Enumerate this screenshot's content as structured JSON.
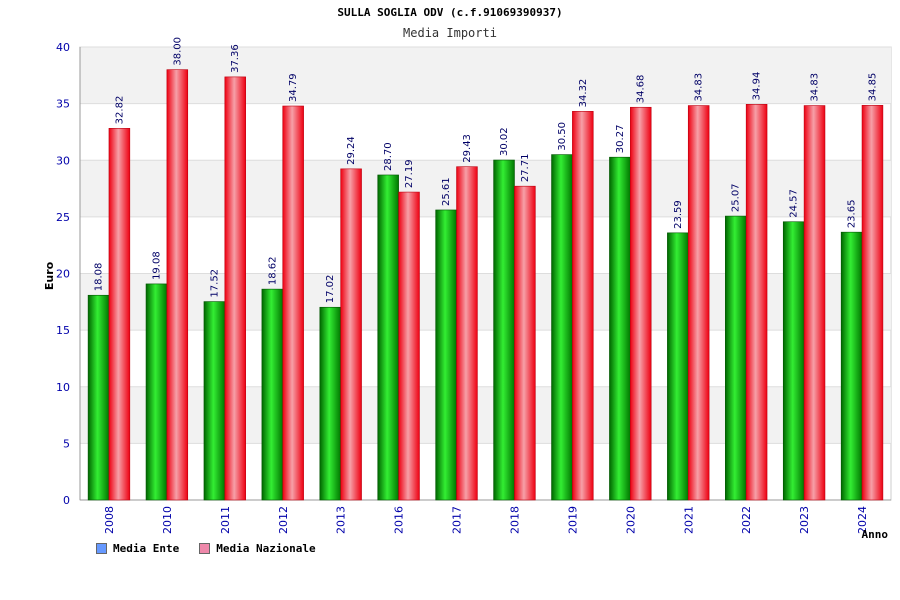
{
  "chart_data": {
    "type": "bar",
    "title": "SULLA SOGLIA ODV (c.f.91069390937)",
    "subtitle": "Media Importi",
    "xlabel": "Anno",
    "ylabel": "Euro",
    "ylim": [
      0,
      40
    ],
    "yticks": [
      0,
      5,
      10,
      15,
      20,
      25,
      30,
      35,
      40
    ],
    "categories": [
      "2008",
      "2010",
      "2011",
      "2012",
      "2013",
      "2016",
      "2017",
      "2018",
      "2019",
      "2020",
      "2021",
      "2022",
      "2023",
      "2024"
    ],
    "series": [
      {
        "name": "Media Ente",
        "color": "#00cc00",
        "legend_color": "#6699ff",
        "values": [
          18.08,
          19.08,
          17.52,
          18.62,
          17.02,
          28.7,
          25.61,
          30.02,
          30.5,
          30.27,
          23.59,
          25.07,
          24.57,
          23.65
        ],
        "labels": [
          "18.08",
          "19.08",
          "17.52",
          "18.62",
          "17.02",
          "28.70",
          "25.61",
          "30.02",
          "30.50",
          "30.27",
          "23.59",
          "25.07",
          "24.57",
          "23.65"
        ]
      },
      {
        "name": "Media Nazionale",
        "color": "#ee1122",
        "legend_color": "#ee88aa",
        "values": [
          32.82,
          38.0,
          37.36,
          34.79,
          29.24,
          27.19,
          29.43,
          27.71,
          34.32,
          34.68,
          34.83,
          34.94,
          34.83,
          34.85
        ],
        "labels": [
          "32.82",
          "38.00",
          "37.36",
          "34.79",
          "29.24",
          "27.19",
          "29.43",
          "27.71",
          "34.32",
          "34.68",
          "34.83",
          "34.94",
          "34.83",
          "34.85"
        ]
      }
    ],
    "legend_position": "bottom-left",
    "grid": true
  }
}
